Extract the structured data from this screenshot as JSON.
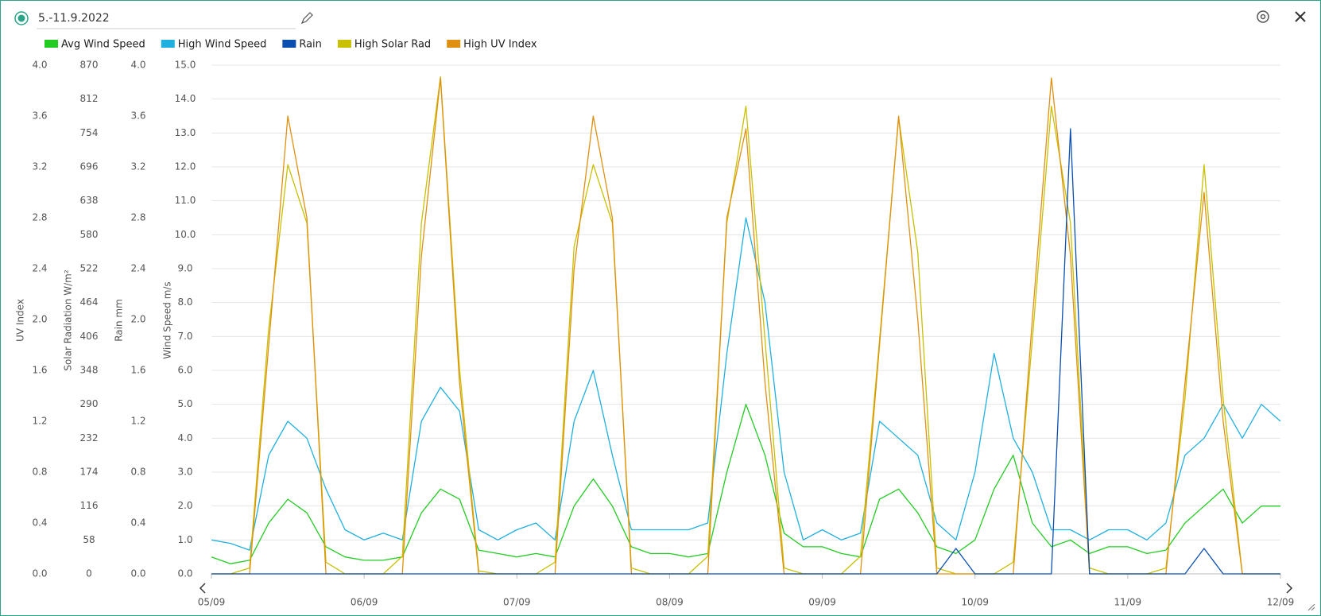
{
  "header": {
    "title": "5.-11.9.2022"
  },
  "chart_data": {
    "type": "line",
    "x": [
      0,
      3,
      6,
      9,
      12,
      15,
      18,
      21,
      24,
      27,
      30,
      33,
      36,
      39,
      42,
      45,
      48,
      51,
      54,
      57,
      60,
      63,
      66,
      69,
      72,
      75,
      78,
      81,
      84,
      87,
      90,
      93,
      96,
      99,
      102,
      105,
      108,
      111,
      114,
      117,
      120,
      123,
      126,
      129,
      132,
      135,
      138,
      141,
      144,
      147,
      150,
      153,
      156,
      159,
      162,
      165,
      168
    ],
    "xlim": [
      0,
      168
    ],
    "xticks": [
      {
        "value": 0,
        "label": "05/09"
      },
      {
        "value": 24,
        "label": "06/09"
      },
      {
        "value": 48,
        "label": "07/09"
      },
      {
        "value": 72,
        "label": "08/09"
      },
      {
        "value": 96,
        "label": "09/09"
      },
      {
        "value": 120,
        "label": "10/09"
      },
      {
        "value": 144,
        "label": "11/09"
      },
      {
        "value": 168,
        "label": "12/09"
      }
    ],
    "y_axes": [
      {
        "label": "UV Index",
        "ylim": [
          0,
          4
        ],
        "yticks": [
          {
            "value": 0,
            "label": "0.0"
          },
          0.4,
          0.8,
          1.2,
          1.6,
          {
            "value": 2,
            "label": "2.0"
          },
          2.4,
          2.8,
          3.2,
          3.6,
          {
            "value": 4,
            "label": "4.0"
          }
        ]
      },
      {
        "label": "Solar Radiation W/m²",
        "ylim": [
          0,
          870
        ],
        "yticks": [
          0,
          58,
          116,
          174,
          232,
          290,
          348,
          406,
          464,
          522,
          580,
          638,
          696,
          754,
          812,
          870
        ]
      },
      {
        "label": "Rain mm",
        "ylim": [
          0,
          4
        ],
        "yticks": [
          {
            "value": 0,
            "label": "0.0"
          },
          0.4,
          0.8,
          1.2,
          1.6,
          {
            "value": 2,
            "label": "2.0"
          },
          2.4,
          2.8,
          3.2,
          3.6,
          {
            "value": 4,
            "label": "4.0"
          }
        ]
      },
      {
        "label": "Wind Speed m/s",
        "ylim": [
          0,
          15
        ],
        "yticks": [
          {
            "value": 0,
            "label": "0.0"
          },
          {
            "value": 1,
            "label": "1.0"
          },
          {
            "value": 2,
            "label": "2.0"
          },
          {
            "value": 3,
            "label": "3.0"
          },
          {
            "value": 4,
            "label": "4.0"
          },
          {
            "value": 5,
            "label": "5.0"
          },
          {
            "value": 6,
            "label": "6.0"
          },
          {
            "value": 7,
            "label": "7.0"
          },
          {
            "value": 8,
            "label": "8.0"
          },
          {
            "value": 9,
            "label": "9.0"
          },
          {
            "value": 10,
            "label": "10.0"
          },
          {
            "value": 11,
            "label": "11.0"
          },
          {
            "value": 12,
            "label": "12.0"
          },
          {
            "value": 13,
            "label": "13.0"
          },
          {
            "value": 14,
            "label": "14.0"
          },
          {
            "value": 15,
            "label": "15.0"
          }
        ]
      }
    ],
    "grid": true,
    "series": [
      {
        "name": "Avg Wind Speed",
        "color": "#22cc22",
        "axis": 3,
        "values": [
          0.5,
          0.3,
          0.4,
          1.5,
          2.2,
          1.8,
          0.8,
          0.5,
          0.4,
          0.4,
          0.5,
          1.8,
          2.5,
          2.2,
          0.7,
          0.6,
          0.5,
          0.6,
          0.5,
          2.0,
          2.8,
          2.0,
          0.8,
          0.6,
          0.6,
          0.5,
          0.6,
          3.0,
          5.0,
          3.5,
          1.2,
          0.8,
          0.8,
          0.6,
          0.5,
          2.2,
          2.5,
          1.8,
          0.8,
          0.6,
          1.0,
          2.5,
          3.5,
          1.5,
          0.8,
          1.0,
          0.6,
          0.8,
          0.8,
          0.6,
          0.7,
          1.5,
          2.0,
          2.5,
          1.5,
          2.0,
          2.0
        ]
      },
      {
        "name": "High Wind Speed",
        "color": "#1fb0e0",
        "axis": 3,
        "values": [
          1.0,
          0.9,
          0.7,
          3.5,
          4.5,
          4.0,
          2.5,
          1.3,
          1.0,
          1.2,
          1.0,
          4.5,
          5.5,
          4.8,
          1.3,
          1.0,
          1.3,
          1.5,
          1.0,
          4.5,
          6.0,
          3.5,
          1.3,
          1.3,
          1.3,
          1.3,
          1.5,
          6.5,
          10.5,
          8.0,
          3.0,
          1.0,
          1.3,
          1.0,
          1.2,
          4.5,
          4.0,
          3.5,
          1.5,
          1.0,
          3.0,
          6.5,
          4.0,
          3.0,
          1.3,
          1.3,
          1.0,
          1.3,
          1.3,
          1.0,
          1.5,
          3.5,
          4.0,
          5.0,
          4.0,
          5.0,
          4.5
        ]
      },
      {
        "name": "Rain",
        "color": "#0a4fb0",
        "axis": 2,
        "values": [
          0,
          0,
          0,
          0,
          0,
          0,
          0,
          0,
          0,
          0,
          0,
          0,
          0,
          0,
          0,
          0,
          0,
          0,
          0,
          0,
          0,
          0,
          0,
          0,
          0,
          0,
          0,
          0,
          0,
          0,
          0,
          0,
          0,
          0,
          0,
          0,
          0,
          0,
          0,
          0.2,
          0,
          0,
          0,
          0,
          0,
          3.5,
          0,
          0,
          0,
          0,
          0,
          0,
          0.2,
          0,
          0,
          0,
          0
        ]
      },
      {
        "name": "High Solar Rad",
        "color": "#c8c000",
        "axis": 1,
        "values": [
          0,
          0,
          10,
          420,
          700,
          600,
          20,
          0,
          0,
          0,
          30,
          600,
          850,
          350,
          5,
          0,
          0,
          0,
          20,
          560,
          700,
          600,
          10,
          0,
          0,
          0,
          30,
          600,
          800,
          400,
          10,
          0,
          0,
          0,
          30,
          400,
          780,
          550,
          10,
          0,
          0,
          0,
          20,
          400,
          800,
          600,
          10,
          0,
          0,
          0,
          10,
          300,
          700,
          300,
          0,
          0,
          0
        ]
      },
      {
        "name": "High UV Index",
        "color": "#e09010",
        "axis": 0,
        "values": [
          0,
          0,
          0,
          1.8,
          3.6,
          2.8,
          0,
          0,
          0,
          0,
          0,
          2.5,
          3.9,
          1.5,
          0,
          0,
          0,
          0,
          0,
          2.4,
          3.6,
          2.8,
          0,
          0,
          0,
          0,
          0,
          2.8,
          3.5,
          1.5,
          0,
          0,
          0,
          0,
          0,
          1.8,
          3.6,
          2.0,
          0,
          0,
          0,
          0,
          0,
          2.0,
          3.9,
          2.5,
          0,
          0,
          0,
          0,
          0,
          1.5,
          3.0,
          1.2,
          0,
          0,
          0
        ]
      }
    ]
  }
}
